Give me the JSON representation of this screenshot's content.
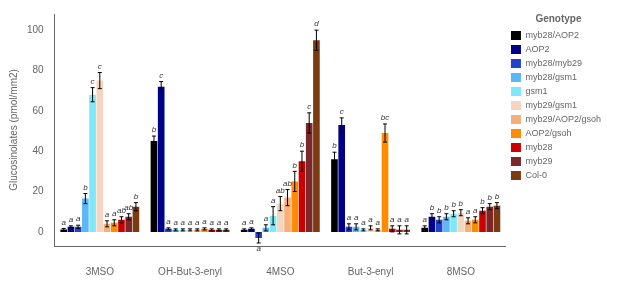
{
  "chart_data": {
    "type": "bar",
    "categories": [
      "3MSO",
      "OH-But-3-enyl",
      "4MSO",
      "But-3-enyl",
      "8MSO"
    ],
    "series": [
      {
        "name": "myb28/AOP2",
        "color": "#000000",
        "values": [
          1.2,
          45.0,
          1.0,
          36.0,
          2.0
        ],
        "errors": [
          0.5,
          2.5,
          0.5,
          3.5,
          1.0
        ],
        "significance": [
          "a",
          "b",
          "a",
          "b",
          "a"
        ]
      },
      {
        "name": "AOP2",
        "color": "#00008B",
        "values": [
          2.5,
          72.0,
          1.5,
          53.0,
          7.5
        ],
        "errors": [
          0.5,
          2.5,
          0.5,
          3.5,
          1.5
        ],
        "significance": [
          "a",
          "c",
          "a",
          "c",
          "b"
        ]
      },
      {
        "name": "myb28/myb29",
        "color": "#2244CC",
        "values": [
          2.5,
          1.5,
          -3.0,
          2.5,
          6.0
        ],
        "errors": [
          0.8,
          0.5,
          2.5,
          1.5,
          1.5
        ],
        "significance": [
          "a",
          "a",
          "a",
          "a",
          "b"
        ]
      },
      {
        "name": "myb28/gsm1",
        "color": "#5BB8F5",
        "values": [
          16.5,
          1.0,
          2.0,
          2.5,
          7.5
        ],
        "errors": [
          2.5,
          0.5,
          1.5,
          1.5,
          1.5
        ],
        "significance": [
          "b",
          "a",
          "a",
          "a",
          "b"
        ]
      },
      {
        "name": "gsm1",
        "color": "#7FE8F8",
        "values": [
          68.0,
          1.0,
          8.0,
          1.0,
          9.0
        ],
        "errors": [
          3.5,
          0.5,
          4.5,
          0.5,
          1.5
        ],
        "significance": [
          "c",
          "a",
          "a",
          "a",
          "b"
        ]
      },
      {
        "name": "myb29/gsm1",
        "color": "#F5D5BE",
        "values": [
          75.0,
          1.0,
          14.0,
          2.0,
          9.5
        ],
        "errors": [
          4.0,
          0.5,
          3.5,
          1.0,
          1.5
        ],
        "significance": [
          "c",
          "a",
          "ab",
          "a",
          "b"
        ]
      },
      {
        "name": "myb29/AOP2/gsoh",
        "color": "#F5B07A",
        "values": [
          4.0,
          1.0,
          17.0,
          1.0,
          5.5
        ],
        "errors": [
          1.5,
          0.5,
          4.0,
          0.5,
          1.5
        ],
        "significance": [
          "a",
          "a",
          "ab",
          "a",
          "a"
        ]
      },
      {
        "name": "AOP2/gsoh",
        "color": "#FF8C00",
        "values": [
          4.5,
          1.5,
          25.0,
          49.0,
          6.0
        ],
        "errors": [
          1.5,
          0.5,
          5.0,
          4.5,
          1.5
        ],
        "significance": [
          "a",
          "a",
          "b",
          "bc",
          "a"
        ]
      },
      {
        "name": "myb28",
        "color": "#CC0000",
        "values": [
          6.0,
          1.0,
          35.0,
          1.5,
          10.5
        ],
        "errors": [
          1.5,
          0.5,
          5.0,
          1.5,
          1.5
        ],
        "significance": [
          "ab",
          "a",
          "b",
          "a",
          "b"
        ]
      },
      {
        "name": "myb29",
        "color": "#7B2828",
        "values": [
          7.5,
          1.0,
          54.0,
          1.0,
          12.5
        ],
        "errors": [
          1.5,
          0.5,
          5.0,
          2.0,
          1.5
        ],
        "significance": [
          "ab",
          "a",
          "c",
          "a",
          "b"
        ]
      },
      {
        "name": "Col-0",
        "color": "#7B3A10",
        "values": [
          12.5,
          1.0,
          95.0,
          1.0,
          13.0
        ],
        "errors": [
          2.0,
          0.5,
          5.0,
          2.0,
          1.5
        ],
        "significance": [
          "b",
          "a",
          "d",
          "a",
          "b"
        ]
      }
    ],
    "ylabel": "Glucosinolates (pmol/mm2)",
    "ylim": [
      -7,
      108
    ],
    "yticks": [
      0,
      20,
      40,
      60,
      80,
      100
    ],
    "legend": "upper right",
    "legend_title": "Genotype",
    "grid": false
  }
}
